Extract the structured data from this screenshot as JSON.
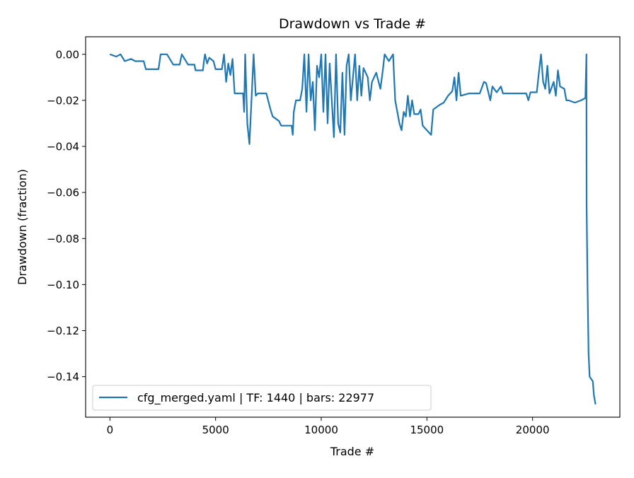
{
  "chart_data": {
    "type": "line",
    "title": "Drawdown vs Trade #",
    "xlabel": "Trade #",
    "ylabel": "Drawdown (fraction)",
    "xlim": [
      -1150,
      24130
    ],
    "ylim": [
      -0.1576,
      0.0076
    ],
    "xticks": [
      0,
      5000,
      10000,
      15000,
      20000
    ],
    "xtick_labels": [
      "0",
      "5000",
      "10000",
      "15000",
      "20000"
    ],
    "yticks": [
      0,
      -0.02,
      -0.04,
      -0.06,
      -0.08,
      -0.1,
      -0.12,
      -0.14
    ],
    "ytick_labels": [
      "0.00",
      "−0.02",
      "−0.04",
      "−0.06",
      "−0.08",
      "−0.10",
      "−0.12",
      "−0.14"
    ],
    "grid": false,
    "legend": {
      "placement": "lower-left",
      "entries": [
        "cfg_merged.yaml | TF: 1440 | bars: 22977"
      ]
    },
    "series": [
      {
        "name": "cfg_merged.yaml | TF: 1440 | bars: 22977",
        "color": "#1f77b4",
        "x": [
          0,
          300,
          500,
          700,
          1000,
          1200,
          1600,
          1700,
          2300,
          2400,
          2700,
          3000,
          3300,
          3400,
          3700,
          4000,
          4050,
          4400,
          4450,
          4500,
          4600,
          4700,
          4900,
          5000,
          5300,
          5400,
          5500,
          5600,
          5700,
          5800,
          5900,
          6300,
          6350,
          6400,
          6500,
          6600,
          6700,
          6800,
          6900,
          7000,
          7400,
          7600,
          7700,
          8000,
          8100,
          8600,
          8650,
          8700,
          8800,
          9000,
          9100,
          9200,
          9300,
          9400,
          9500,
          9600,
          9700,
          9800,
          9900,
          10000,
          10100,
          10200,
          10300,
          10400,
          10500,
          10600,
          10700,
          10800,
          10900,
          11000,
          11100,
          11200,
          11300,
          11400,
          11600,
          11700,
          11800,
          11900,
          12000,
          12200,
          12300,
          12400,
          12600,
          12800,
          12900,
          13000,
          13200,
          13400,
          13500,
          13700,
          13800,
          13900,
          14000,
          14100,
          14200,
          14300,
          14400,
          14600,
          14700,
          14800,
          15000,
          15200,
          15300,
          15600,
          15800,
          16000,
          16200,
          16300,
          16400,
          16500,
          16600,
          17000,
          17500,
          17700,
          17800,
          18000,
          18100,
          18300,
          18500,
          18600,
          19500,
          19700,
          19800,
          19900,
          20200,
          20300,
          20400,
          20500,
          20600,
          20700,
          20800,
          21000,
          21100,
          21200,
          21300,
          21500,
          21600,
          21700,
          22000,
          22300,
          22500,
          22550,
          22555,
          22600,
          22650,
          22700,
          22850,
          22900,
          22977
        ],
        "y": [
          0,
          -0.001,
          0,
          -0.003,
          -0.002,
          -0.003,
          -0.003,
          -0.0065,
          -0.0065,
          0,
          0,
          -0.0045,
          -0.0045,
          0,
          -0.0045,
          -0.0045,
          -0.007,
          -0.007,
          -0.003,
          0,
          -0.004,
          -0.0015,
          -0.003,
          -0.0065,
          -0.0065,
          0,
          -0.012,
          -0.004,
          -0.009,
          -0.002,
          -0.017,
          -0.017,
          -0.025,
          0,
          -0.03,
          -0.039,
          -0.02,
          0,
          -0.018,
          -0.017,
          -0.017,
          -0.024,
          -0.027,
          -0.029,
          -0.031,
          -0.031,
          -0.035,
          -0.025,
          -0.02,
          -0.02,
          -0.015,
          0,
          -0.025,
          0,
          -0.02,
          -0.012,
          -0.033,
          -0.005,
          -0.01,
          0,
          -0.025,
          0,
          -0.03,
          -0.004,
          -0.02,
          -0.036,
          0,
          -0.03,
          -0.034,
          -0.008,
          -0.035,
          -0.005,
          0,
          -0.02,
          0,
          -0.02,
          -0.005,
          -0.018,
          -0.006,
          -0.01,
          -0.02,
          -0.012,
          -0.008,
          -0.015,
          -0.008,
          0,
          -0.003,
          0,
          -0.02,
          -0.03,
          -0.033,
          -0.025,
          -0.027,
          -0.018,
          -0.027,
          -0.02,
          -0.026,
          -0.026,
          -0.024,
          -0.031,
          -0.033,
          -0.035,
          -0.024,
          -0.022,
          -0.021,
          -0.018,
          -0.016,
          -0.01,
          -0.02,
          -0.008,
          -0.018,
          -0.017,
          -0.017,
          -0.012,
          -0.0125,
          -0.02,
          -0.014,
          -0.0165,
          -0.014,
          -0.017,
          -0.017,
          -0.017,
          -0.02,
          -0.0165,
          -0.0165,
          -0.008,
          0,
          -0.012,
          -0.015,
          -0.005,
          -0.017,
          -0.012,
          -0.018,
          -0.007,
          -0.014,
          -0.015,
          -0.02,
          -0.02,
          -0.021,
          -0.02,
          -0.019,
          0,
          -0.065,
          -0.1,
          -0.13,
          -0.14,
          -0.142,
          -0.148,
          -0.152
        ]
      }
    ]
  }
}
